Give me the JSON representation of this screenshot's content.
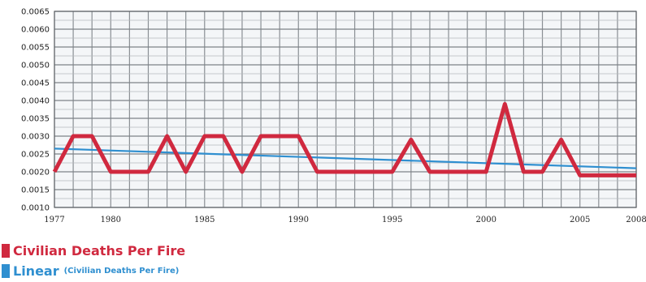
{
  "chart_data": {
    "type": "line",
    "title": "",
    "xlabel": "",
    "ylabel": "",
    "x": [
      1977,
      1978,
      1979,
      1980,
      1981,
      1982,
      1983,
      1984,
      1985,
      1986,
      1987,
      1988,
      1989,
      1990,
      1991,
      1992,
      1993,
      1994,
      1995,
      1996,
      1997,
      1998,
      1999,
      2000,
      2001,
      2002,
      2003,
      2004,
      2005,
      2006,
      2007,
      2008
    ],
    "xlim": [
      1977,
      2008
    ],
    "x_ticks": [
      1977,
      1980,
      1985,
      1990,
      1995,
      2000,
      2005,
      2008
    ],
    "ylim": [
      0.001,
      0.0065
    ],
    "y_ticks": [
      "0.0010",
      "0.0015",
      "0.0020",
      "0.0025",
      "0.0030",
      "0.0035",
      "0.0040",
      "0.0045",
      "0.0050",
      "0.0055",
      "0.0060",
      "0.0065"
    ],
    "grid": true,
    "legend_position": "bottom-left",
    "series": [
      {
        "name": "Civilian Deaths Per Fire",
        "color": "#d0293f",
        "values": [
          0.002,
          0.003,
          0.003,
          0.002,
          0.002,
          0.002,
          0.003,
          0.002,
          0.003,
          0.003,
          0.002,
          0.003,
          0.003,
          0.003,
          0.002,
          0.002,
          0.002,
          0.002,
          0.002,
          0.0029,
          0.002,
          0.002,
          0.002,
          0.002,
          0.0039,
          0.002,
          0.002,
          0.0029,
          0.0019,
          0.0019,
          0.0019,
          0.0019
        ]
      },
      {
        "name": "Linear",
        "name_suffix": "(Civilian Deaths Per Fire)",
        "color": "#2f8fd0",
        "x": [
          1977,
          2008
        ],
        "values": [
          0.00265,
          0.0021
        ]
      }
    ]
  }
}
